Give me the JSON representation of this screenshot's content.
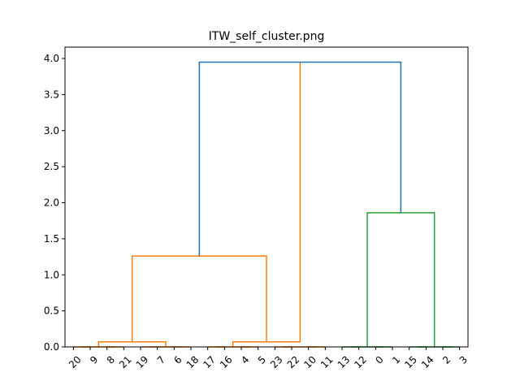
{
  "chart_data": {
    "type": "dendrogram",
    "title": "ITW_self_cluster.png",
    "xlabel": "",
    "ylabel": "",
    "ylim": [
      0.0,
      4.0
    ],
    "yticks": [
      "0.0",
      "0.5",
      "1.0",
      "1.5",
      "2.0",
      "2.5",
      "3.0",
      "3.5",
      "4.0"
    ],
    "leaf_order": [
      "20",
      "9",
      "8",
      "21",
      "19",
      "7",
      "6",
      "18",
      "17",
      "16",
      "4",
      "5",
      "23",
      "22",
      "10",
      "11",
      "13",
      "12",
      "0",
      "1",
      "15",
      "14",
      "2",
      "3"
    ],
    "colors": {
      "orange": "#ff7f0e",
      "green": "#2ca02c",
      "blue": "#1f77b4"
    },
    "links": [
      {
        "l": 0,
        "r": 1,
        "h": 0.0,
        "color": "orange"
      },
      {
        "l": 2,
        "r": 3,
        "h": 0.0,
        "color": "orange"
      },
      {
        "l": 4,
        "r": 5,
        "h": 0.0,
        "color": "orange"
      },
      {
        "l": 6,
        "r": 7,
        "h": 0.0,
        "color": "orange"
      },
      {
        "l": 0.5,
        "r": 2.5,
        "h": 0.0,
        "color": "orange"
      },
      {
        "l": 4.5,
        "r": 6.5,
        "h": 0.0,
        "color": "orange"
      },
      {
        "l": 1.5,
        "r": 5.5,
        "h": 0.07,
        "color": "orange"
      },
      {
        "l": 8,
        "r": 9,
        "h": 0.0,
        "color": "orange"
      },
      {
        "l": 10,
        "r": 11,
        "h": 0.0,
        "color": "orange"
      },
      {
        "l": 12,
        "r": 13,
        "h": 0.0,
        "color": "orange"
      },
      {
        "l": 14,
        "r": 15,
        "h": 0.0,
        "color": "orange"
      },
      {
        "l": 8.5,
        "r": 10.5,
        "h": 0.0,
        "color": "orange"
      },
      {
        "l": 12.5,
        "r": 14.5,
        "h": 0.0,
        "color": "orange"
      },
      {
        "l": 9.5,
        "r": 13.5,
        "h": 0.07,
        "color": "orange"
      },
      {
        "l": 3.5,
        "r": 11.5,
        "h": 1.26,
        "color": "orange"
      },
      {
        "l": 16,
        "r": 17,
        "h": 0.0,
        "color": "green"
      },
      {
        "l": 18,
        "r": 19,
        "h": 0.0,
        "color": "green"
      },
      {
        "l": 16.5,
        "r": 18.5,
        "h": 0.0,
        "color": "green"
      },
      {
        "l": 20,
        "r": 21,
        "h": 0.0,
        "color": "green"
      },
      {
        "l": 22,
        "r": 23,
        "h": 0.0,
        "color": "green"
      },
      {
        "l": 20.5,
        "r": 22.5,
        "h": 0.0,
        "color": "green"
      },
      {
        "l": 17.5,
        "r": 21.5,
        "h": 1.86,
        "color": "green"
      },
      {
        "l": 7.5,
        "r": 19.5,
        "h": 3.95,
        "color": "blue"
      }
    ],
    "legend": "none",
    "grid": false
  }
}
